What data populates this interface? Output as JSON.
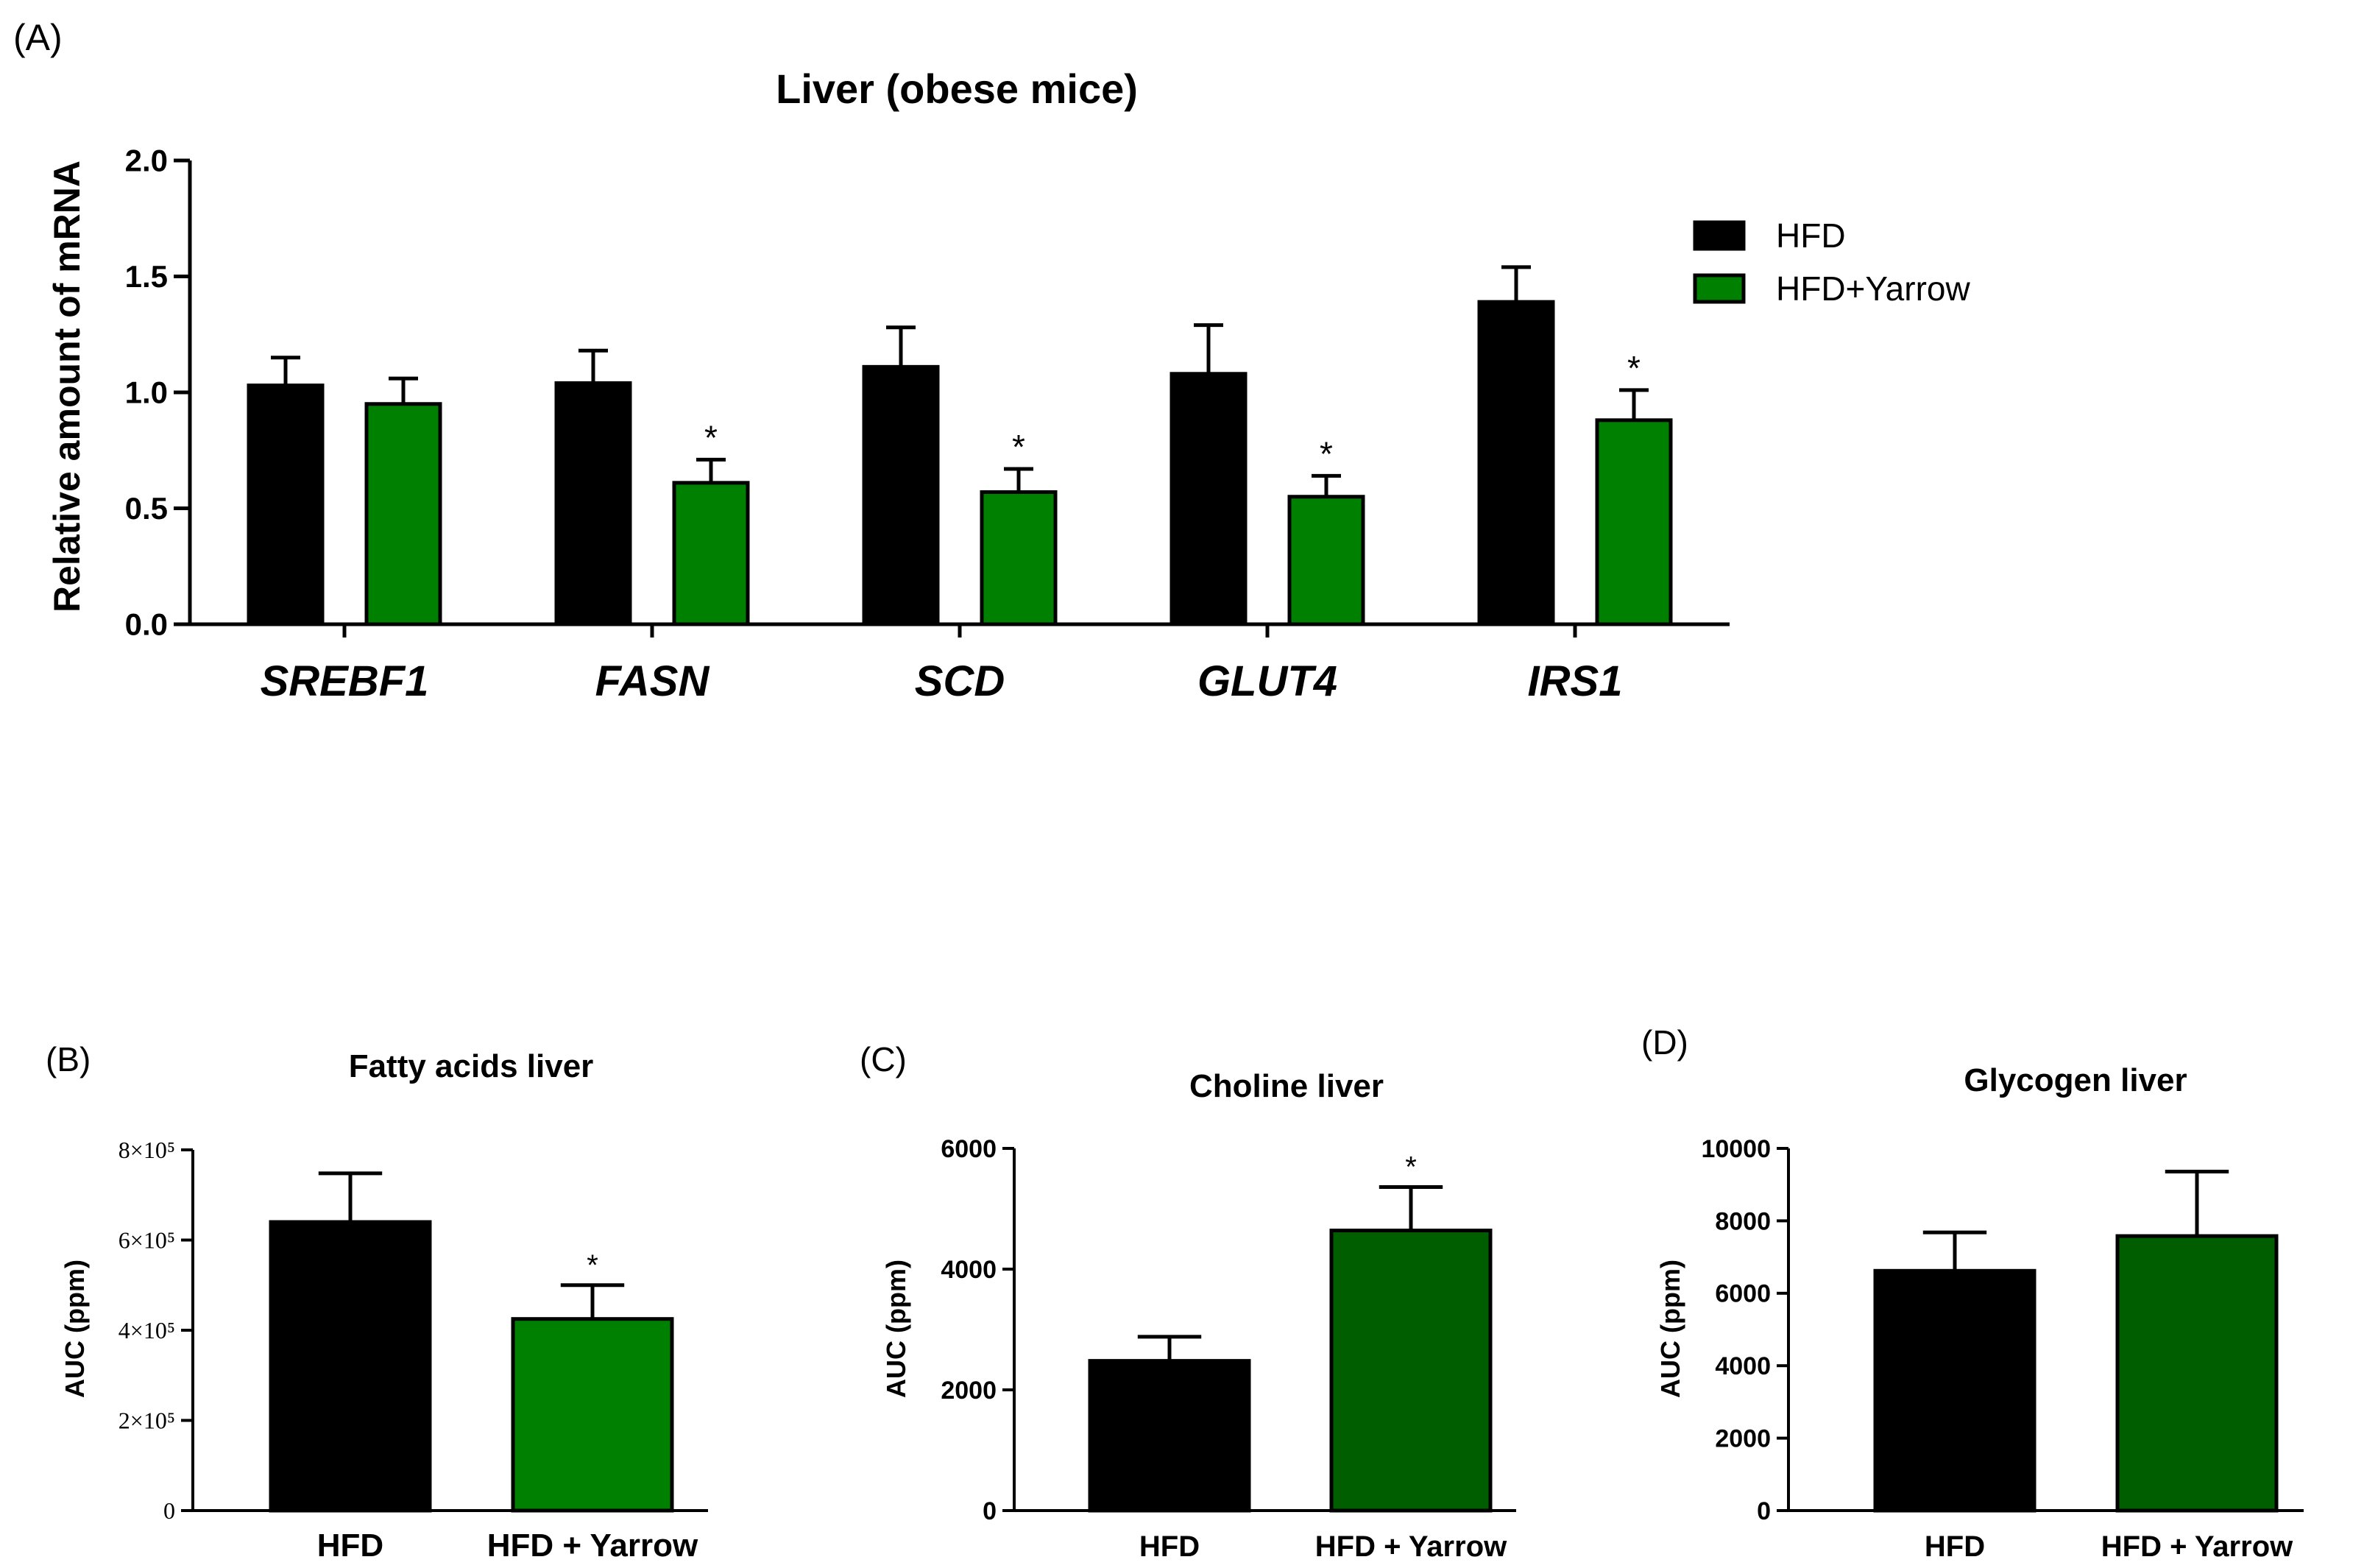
{
  "colors": {
    "hfd": "#000000",
    "yarrow_bright": "#008000",
    "yarrow_dark": "#005e00",
    "axis": "#000000"
  },
  "panels": {
    "A": {
      "label": "(A)"
    },
    "B": {
      "label": "(B)"
    },
    "C": {
      "label": "(C)"
    },
    "D": {
      "label": "(D)"
    }
  },
  "chart_data": [
    {
      "id": "A",
      "type": "bar",
      "title": "Liver (obese mice)",
      "ylabel": "Relative amount of mRNA",
      "xlabel": "",
      "ylim": [
        0,
        2.0
      ],
      "yticks": [
        "0.0",
        "0.5",
        "1.0",
        "1.5",
        "2.0"
      ],
      "yticks_values": [
        0,
        0.5,
        1.0,
        1.5,
        2.0
      ],
      "categories": [
        "SREBF1",
        "FASN",
        "SCD",
        "GLUT4",
        "IRS1"
      ],
      "series": [
        {
          "name": "HFD",
          "values": [
            1.03,
            1.04,
            1.11,
            1.08,
            1.39
          ],
          "errors": [
            0.12,
            0.14,
            0.17,
            0.21,
            0.15
          ],
          "sig": [
            "",
            "",
            "",
            "",
            ""
          ]
        },
        {
          "name": "HFD+Yarrow",
          "values": [
            0.95,
            0.61,
            0.57,
            0.55,
            0.88
          ],
          "errors": [
            0.11,
            0.1,
            0.1,
            0.09,
            0.13
          ],
          "sig": [
            "",
            "*",
            "*",
            "*",
            "*"
          ]
        }
      ],
      "legend": "right",
      "grid": false
    },
    {
      "id": "B",
      "type": "bar",
      "title": "Fatty acids liver",
      "ylabel": "AUC (ppm)",
      "ylim": [
        0,
        800000
      ],
      "yticks": [
        "0",
        "2×10⁵",
        "4×10⁵",
        "6×10⁵",
        "8×10⁵"
      ],
      "yticks_values": [
        0,
        200000,
        400000,
        600000,
        800000
      ],
      "categories": [
        "HFD",
        "HFD + Yarrow"
      ],
      "values": [
        640000,
        425000
      ],
      "errors": [
        108000,
        75000
      ],
      "sig": [
        "",
        "*"
      ],
      "grid": false
    },
    {
      "id": "C",
      "type": "bar",
      "title": "Choline liver",
      "ylabel": "AUC (ppm)",
      "ylim": [
        0,
        6000
      ],
      "yticks": [
        "0",
        "2000",
        "4000",
        "6000"
      ],
      "yticks_values": [
        0,
        2000,
        4000,
        6000
      ],
      "categories": [
        "HFD",
        "HFD + Yarrow"
      ],
      "values": [
        2480,
        4640
      ],
      "errors": [
        400,
        720
      ],
      "sig": [
        "",
        "*"
      ],
      "grid": false
    },
    {
      "id": "D",
      "type": "bar",
      "title": "Glycogen liver",
      "ylabel": "AUC (ppm)",
      "ylim": [
        0,
        10000
      ],
      "yticks": [
        "0",
        "2000",
        "4000",
        "6000",
        "8000",
        "10000"
      ],
      "yticks_values": [
        0,
        2000,
        4000,
        6000,
        8000,
        10000
      ],
      "categories": [
        "HFD",
        "HFD + Yarrow"
      ],
      "values": [
        6620,
        7580
      ],
      "errors": [
        1060,
        1780
      ],
      "sig": [
        "",
        ""
      ],
      "grid": false
    }
  ]
}
